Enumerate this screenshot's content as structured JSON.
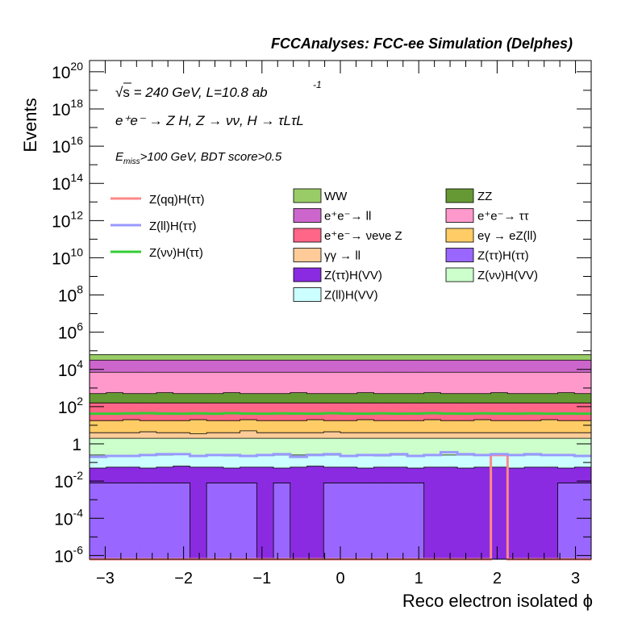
{
  "header": {
    "title": "FCCAnalyses: FCC-ee Simulation (Delphes)"
  },
  "annotations": {
    "energy_line": {
      "sqrt": "√s",
      "text": " = 240 GeV, L=10.8 ab",
      "exp": "-1"
    },
    "process_line": "e⁺e⁻ → Z H, Z → νν, H → τLτL",
    "cut_line": {
      "main": "E",
      "sub": "miss",
      "rest": ">100 GeV, BDT score>0.5"
    }
  },
  "chart_data": {
    "type": "histogram-stack",
    "title": "FCCAnalyses: FCC-ee Simulation (Delphes)",
    "xlabel": "Reco electron isolated ϕ",
    "ylabel": "Events",
    "log_y": true,
    "xlim": [
      -3.2,
      3.2
    ],
    "ylim_exp": [
      -6.2,
      20.6
    ],
    "x_ticks": [
      "−3",
      "−2",
      "−1",
      "0",
      "1",
      "2",
      "3"
    ],
    "x_tick_values": [
      -3,
      -2,
      -1,
      0,
      1,
      2,
      3
    ],
    "y_ticks": [
      {
        "base": "10",
        "exp": "-6",
        "v": -6
      },
      {
        "base": "10",
        "exp": "-4",
        "v": -4
      },
      {
        "base": "10",
        "exp": "-2",
        "v": -2
      },
      {
        "base": "1",
        "exp": "",
        "v": 0
      },
      {
        "base": "10",
        "exp": "2",
        "v": 2
      },
      {
        "base": "10",
        "exp": "4",
        "v": 4
      },
      {
        "base": "10",
        "exp": "6",
        "v": 6
      },
      {
        "base": "10",
        "exp": "8",
        "v": 8
      },
      {
        "base": "10",
        "exp": "10",
        "v": 10
      },
      {
        "base": "10",
        "exp": "12",
        "v": 12
      },
      {
        "base": "10",
        "exp": "14",
        "v": 14
      },
      {
        "base": "10",
        "exp": "16",
        "v": 16
      },
      {
        "base": "10",
        "exp": "18",
        "v": 18
      },
      {
        "base": "10",
        "exp": "20",
        "v": 20
      }
    ],
    "bins": 30,
    "stack_log10_tops": [
      {
        "name": "Z(ττ)H(ττ)",
        "color": "#9966ff",
        "values": [
          -2.1,
          -2.1,
          -2.1,
          -2.1,
          -2.1,
          -2.1,
          -6.2,
          -2.1,
          -2.1,
          -2.1,
          -6.2,
          -2.1,
          -6.2,
          -6.2,
          -2.1,
          -2.1,
          -2.1,
          -2.1,
          -2.1,
          -2.1,
          -6.2,
          -6.2,
          -6.2,
          -6.2,
          -6.2,
          -6.2,
          -6.2,
          -6.2,
          -2.1,
          -2.1
        ]
      },
      {
        "name": "Z(ττ)H(VV)",
        "color": "#8a2be2",
        "values": [
          -1.3,
          -1.25,
          -1.25,
          -1.3,
          -1.25,
          -1.2,
          -1.25,
          -1.25,
          -1.3,
          -1.25,
          -1.25,
          -1.3,
          -1.25,
          -1.2,
          -1.25,
          -1.25,
          -1.3,
          -1.25,
          -1.25,
          -1.3,
          -1.25,
          -1.25,
          -1.3,
          -1.25,
          -1.25,
          -1.3,
          -1.25,
          -1.25,
          -1.3,
          -1.25
        ]
      },
      {
        "name": "Z(ll)H(VV)",
        "color": "#ccffff",
        "values": [
          -0.6,
          -0.6,
          -0.6,
          -0.6,
          -0.6,
          -0.55,
          -0.6,
          -0.6,
          -0.65,
          -0.6,
          -0.6,
          -0.6,
          -0.6,
          -0.55,
          -0.6,
          -0.6,
          -0.6,
          -0.65,
          -0.6,
          -0.6,
          -0.6,
          -0.6,
          -0.6,
          -0.6,
          -0.6,
          -0.6,
          -0.6,
          -0.6,
          -0.6,
          -0.6
        ]
      },
      {
        "name": "Z(νν)H(VV)",
        "color": "#ccffcc",
        "values": [
          0.3,
          0.3,
          0.3,
          0.3,
          0.3,
          0.3,
          0.3,
          0.3,
          0.3,
          0.3,
          0.3,
          0.3,
          0.3,
          0.3,
          0.3,
          0.3,
          0.3,
          0.3,
          0.3,
          0.3,
          0.3,
          0.3,
          0.3,
          0.3,
          0.3,
          0.3,
          0.3,
          0.3,
          0.3,
          0.3
        ]
      },
      {
        "name": "γγ → ll",
        "color": "#ffcc99",
        "values": [
          0.6,
          0.6,
          0.6,
          0.65,
          0.6,
          0.6,
          0.55,
          0.6,
          0.6,
          0.7,
          0.6,
          0.6,
          0.6,
          0.6,
          0.65,
          0.6,
          0.6,
          0.6,
          0.6,
          0.6,
          0.6,
          0.6,
          0.6,
          0.6,
          0.6,
          0.6,
          0.6,
          0.6,
          0.6,
          0.6
        ]
      },
      {
        "name": "eγ → eZ(ll)",
        "color": "#ffcc66",
        "values": [
          1.25,
          1.25,
          1.3,
          1.25,
          1.25,
          1.25,
          1.3,
          1.25,
          1.25,
          1.3,
          1.25,
          1.25,
          1.25,
          1.3,
          1.25,
          1.25,
          1.3,
          1.25,
          1.25,
          1.25,
          1.3,
          1.25,
          1.25,
          1.3,
          1.25,
          1.25,
          1.25,
          1.3,
          1.25,
          1.25
        ]
      },
      {
        "name": "e⁺e⁻→ νeνe Z",
        "color": "#ff6688",
        "values": [
          2.2,
          2.2,
          2.2,
          2.2,
          2.2,
          2.2,
          2.2,
          2.2,
          2.2,
          2.2,
          2.2,
          2.2,
          2.2,
          2.2,
          2.2,
          2.2,
          2.2,
          2.2,
          2.2,
          2.2,
          2.2,
          2.2,
          2.2,
          2.2,
          2.2,
          2.2,
          2.2,
          2.2,
          2.2,
          2.2
        ]
      },
      {
        "name": "ZZ",
        "color": "#669933",
        "values": [
          2.7,
          2.75,
          2.7,
          2.7,
          2.75,
          2.7,
          2.7,
          2.7,
          2.75,
          2.7,
          2.7,
          2.7,
          2.75,
          2.7,
          2.7,
          2.7,
          2.75,
          2.7,
          2.7,
          2.7,
          2.75,
          2.7,
          2.7,
          2.7,
          2.75,
          2.7,
          2.7,
          2.7,
          2.75,
          2.7
        ]
      },
      {
        "name": "e⁺e⁻→ ττ",
        "color": "#ff99cc",
        "values": [
          3.85,
          3.85,
          3.85,
          3.85,
          3.85,
          3.85,
          3.85,
          3.85,
          3.85,
          3.85,
          3.85,
          3.85,
          3.85,
          3.85,
          3.85,
          3.85,
          3.85,
          3.85,
          3.85,
          3.85,
          3.85,
          3.85,
          3.85,
          3.85,
          3.85,
          3.85,
          3.85,
          3.85,
          3.85,
          3.85
        ]
      },
      {
        "name": "e⁺e⁻→ ll",
        "color": "#cc66cc",
        "values": [
          4.5,
          4.5,
          4.5,
          4.5,
          4.5,
          4.5,
          4.5,
          4.5,
          4.5,
          4.5,
          4.5,
          4.5,
          4.5,
          4.5,
          4.5,
          4.5,
          4.5,
          4.5,
          4.5,
          4.5,
          4.5,
          4.5,
          4.5,
          4.5,
          4.5,
          4.5,
          4.5,
          4.5,
          4.5,
          4.5
        ]
      },
      {
        "name": "WW",
        "color": "#99cc66",
        "values": [
          4.8,
          4.8,
          4.8,
          4.8,
          4.8,
          4.8,
          4.8,
          4.8,
          4.8,
          4.8,
          4.8,
          4.8,
          4.8,
          4.8,
          4.8,
          4.8,
          4.8,
          4.8,
          4.8,
          4.8,
          4.8,
          4.8,
          4.8,
          4.8,
          4.8,
          4.8,
          4.8,
          4.8,
          4.8,
          4.8
        ]
      }
    ],
    "signal_lines": [
      {
        "name": "Z(qq)H(ττ)",
        "color": "#ff8888",
        "values": [
          -6.2,
          -6.2,
          -6.2,
          -6.2,
          -6.2,
          -6.2,
          -6.2,
          -6.2,
          -6.2,
          -6.2,
          -6.2,
          -6.2,
          -6.2,
          -6.2,
          -6.2,
          -6.2,
          -6.2,
          -6.2,
          -6.2,
          -6.2,
          -6.2,
          -6.2,
          -6.2,
          -6.2,
          -0.6,
          -6.2,
          -6.2,
          -6.2,
          -6.2,
          -6.2
        ]
      },
      {
        "name": "Z(ll)H(ττ)",
        "color": "#9999ff",
        "values": [
          -0.7,
          -0.65,
          -0.65,
          -0.6,
          -0.55,
          -0.55,
          -0.65,
          -0.6,
          -0.6,
          -0.65,
          -0.6,
          -0.55,
          -0.7,
          -0.6,
          -0.55,
          -0.65,
          -0.6,
          -0.6,
          -0.55,
          -0.65,
          -0.6,
          -0.45,
          -0.55,
          -0.6,
          -0.55,
          -0.6,
          -0.55,
          -0.6,
          -0.6,
          -0.65
        ]
      },
      {
        "name": "Z(νν)H(ττ)",
        "color": "#33cc33",
        "values": [
          1.62,
          1.62,
          1.64,
          1.65,
          1.63,
          1.62,
          1.64,
          1.62,
          1.65,
          1.63,
          1.62,
          1.64,
          1.63,
          1.62,
          1.65,
          1.63,
          1.62,
          1.64,
          1.62,
          1.63,
          1.65,
          1.63,
          1.62,
          1.64,
          1.63,
          1.62,
          1.64,
          1.62,
          1.63,
          1.62
        ]
      }
    ],
    "legend": {
      "placement": "middle",
      "left": [
        {
          "label": "Z(qq)H(ττ)",
          "color": "#ff8888"
        },
        {
          "label": "Z(ll)H(ττ)",
          "color": "#9999ff"
        },
        {
          "label": "Z(νν)H(ττ)",
          "color": "#33cc33"
        }
      ],
      "middle": [
        {
          "label": "WW",
          "color": "#99cc66"
        },
        {
          "label": "e⁺e⁻→ ll",
          "color": "#cc66cc"
        },
        {
          "label": "e⁺e⁻→ νeνe Z",
          "color": "#ff6688"
        },
        {
          "label": "γγ → ll",
          "color": "#ffcc99"
        },
        {
          "label": "Z(ττ)H(VV)",
          "color": "#8a2be2"
        },
        {
          "label": "Z(ll)H(VV)",
          "color": "#ccffff"
        }
      ],
      "right": [
        {
          "label": "ZZ",
          "color": "#669933"
        },
        {
          "label": "e⁺e⁻→ ττ",
          "color": "#ff99cc"
        },
        {
          "label": "eγ → eZ(ll)",
          "color": "#ffcc66"
        },
        {
          "label": "Z(ττ)H(ττ)",
          "color": "#9966ff"
        },
        {
          "label": "Z(νν)H(VV)",
          "color": "#ccffcc"
        }
      ]
    }
  }
}
